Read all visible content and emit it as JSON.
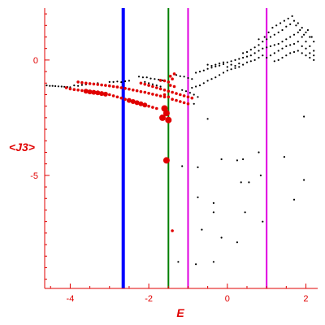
{
  "colors": {
    "axis": "#e00000",
    "tick_text": "#e00000",
    "black_points": "#000000",
    "red_points": "#e00000",
    "line_blue": "#0000ff",
    "line_green": "#008000",
    "line_magenta": "#e000e0"
  },
  "chart_data": {
    "type": "scatter",
    "title": "",
    "xlabel": "E",
    "ylabel": "<J3>",
    "xlim": [
      -4.65,
      2.3
    ],
    "ylim": [
      -9.9,
      2.25
    ],
    "xticks": [
      -4,
      -2,
      0,
      2
    ],
    "xtick_labels": [
      "-4",
      "-2",
      "0",
      "2"
    ],
    "yticks": [
      0,
      -5
    ],
    "ytick_labels": [
      "0",
      "-5"
    ],
    "grid": false,
    "legend": "none",
    "vlines": [
      {
        "x": -2.65,
        "color": "blue",
        "width": "thick"
      },
      {
        "x": -1.5,
        "color": "green",
        "width": "thin"
      },
      {
        "x": -1.0,
        "color": "magenta",
        "width": "thin"
      },
      {
        "x": 1.0,
        "color": "magenta",
        "width": "thin"
      }
    ],
    "series": [
      {
        "color": "black",
        "points": [
          [
            -4.6,
            -1.1
          ],
          [
            -4.52,
            -1.12
          ],
          [
            -4.45,
            -1.12
          ],
          [
            -4.38,
            -1.13
          ],
          [
            -4.3,
            -1.14
          ],
          [
            -4.22,
            -1.15
          ],
          [
            -4.15,
            -1.16
          ],
          [
            -4.07,
            -1.17
          ],
          [
            -4.0,
            -1.18
          ],
          [
            -3.9,
            -1.1
          ],
          [
            -3.8,
            -1.12
          ],
          [
            -3.7,
            -1.08
          ],
          [
            -3.6,
            -1.06
          ],
          [
            -3.5,
            -1.04
          ],
          [
            -3.4,
            -1.02
          ],
          [
            -3.3,
            -1.0
          ],
          [
            -3.0,
            -0.95
          ],
          [
            -2.9,
            -0.95
          ],
          [
            -2.8,
            -0.93
          ],
          [
            -2.7,
            -0.96
          ],
          [
            -2.6,
            -0.92
          ],
          [
            -2.5,
            -0.9
          ],
          [
            -2.25,
            -0.72
          ],
          [
            -2.15,
            -0.75
          ],
          [
            -2.05,
            -0.75
          ],
          [
            -1.95,
            -0.8
          ],
          [
            -1.85,
            -0.82
          ],
          [
            -1.75,
            -0.85
          ],
          [
            -1.65,
            -0.88
          ],
          [
            -2.1,
            -0.95
          ],
          [
            -2.0,
            -1.0
          ],
          [
            -1.9,
            -1.05
          ],
          [
            -1.8,
            -1.1
          ],
          [
            -1.7,
            -1.15
          ],
          [
            -1.3,
            -0.65
          ],
          [
            -1.2,
            -0.7
          ],
          [
            -1.1,
            -0.72
          ],
          [
            -1.0,
            -0.78
          ],
          [
            -0.9,
            -0.82
          ],
          [
            -1.15,
            -1.3
          ],
          [
            -1.05,
            -1.35
          ],
          [
            -0.95,
            -1.42
          ],
          [
            -0.85,
            -1.5
          ],
          [
            -0.75,
            -1.6
          ],
          [
            -0.85,
            -1.9
          ],
          [
            -0.8,
            -0.55
          ],
          [
            -0.7,
            -0.5
          ],
          [
            -0.6,
            -0.45
          ],
          [
            -0.5,
            -0.38
          ],
          [
            -0.4,
            -0.33
          ],
          [
            -0.3,
            -0.28
          ],
          [
            -0.2,
            -0.24
          ],
          [
            -0.1,
            -0.18
          ],
          [
            0.0,
            -0.1
          ],
          [
            0.1,
            -0.05
          ],
          [
            0.2,
            0.0
          ],
          [
            0.3,
            0.05
          ],
          [
            0.4,
            0.1
          ],
          [
            0.5,
            0.15
          ],
          [
            -0.9,
            -1.2
          ],
          [
            -0.8,
            -1.15
          ],
          [
            -0.7,
            -1.1
          ],
          [
            -0.6,
            -1.0
          ],
          [
            -0.5,
            -0.9
          ],
          [
            -0.4,
            -0.82
          ],
          [
            -0.3,
            -0.75
          ],
          [
            -0.2,
            -0.65
          ],
          [
            -0.1,
            -0.55
          ],
          [
            0.0,
            -0.45
          ],
          [
            0.1,
            -0.4
          ],
          [
            0.2,
            -0.35
          ],
          [
            0.3,
            -0.3
          ],
          [
            -0.5,
            -0.2
          ],
          [
            -0.4,
            -0.25
          ],
          [
            -0.3,
            -0.2
          ],
          [
            -0.2,
            -0.15
          ],
          [
            -0.1,
            -0.1
          ],
          [
            0.0,
            -0.3
          ],
          [
            0.1,
            -0.2
          ],
          [
            0.2,
            -0.25
          ],
          [
            0.3,
            -0.15
          ],
          [
            0.4,
            -0.2
          ],
          [
            0.5,
            -0.1
          ],
          [
            0.6,
            -0.05
          ],
          [
            0.7,
            0.0
          ],
          [
            0.8,
            0.1
          ],
          [
            0.9,
            0.2
          ],
          [
            0.4,
            0.3
          ],
          [
            0.5,
            0.35
          ],
          [
            0.6,
            0.45
          ],
          [
            0.7,
            0.55
          ],
          [
            0.8,
            0.65
          ],
          [
            0.9,
            0.8
          ],
          [
            1.0,
            0.9
          ],
          [
            1.1,
            1.0
          ],
          [
            1.2,
            1.1
          ],
          [
            1.3,
            1.2
          ],
          [
            1.4,
            1.3
          ],
          [
            1.5,
            1.45
          ],
          [
            1.6,
            1.55
          ],
          [
            1.7,
            1.7
          ],
          [
            1.8,
            1.6
          ],
          [
            1.9,
            1.4
          ],
          [
            2.0,
            1.2
          ],
          [
            2.1,
            1.0
          ],
          [
            2.2,
            0.8
          ],
          [
            0.6,
            0.2
          ],
          [
            0.7,
            0.3
          ],
          [
            0.8,
            0.4
          ],
          [
            0.9,
            0.5
          ],
          [
            1.0,
            0.55
          ],
          [
            1.1,
            0.6
          ],
          [
            1.2,
            0.65
          ],
          [
            1.3,
            0.7
          ],
          [
            1.4,
            0.8
          ],
          [
            1.5,
            0.9
          ],
          [
            1.6,
            1.0
          ],
          [
            1.7,
            1.1
          ],
          [
            1.8,
            1.2
          ],
          [
            1.9,
            1.0
          ],
          [
            2.0,
            0.8
          ],
          [
            2.1,
            0.6
          ],
          [
            2.2,
            0.4
          ],
          [
            1.0,
            0.1
          ],
          [
            1.1,
            0.2
          ],
          [
            1.2,
            0.3
          ],
          [
            1.3,
            0.4
          ],
          [
            1.4,
            0.5
          ],
          [
            1.5,
            0.6
          ],
          [
            1.6,
            0.65
          ],
          [
            1.7,
            0.7
          ],
          [
            1.8,
            0.8
          ],
          [
            1.9,
            0.6
          ],
          [
            2.0,
            0.5
          ],
          [
            2.1,
            0.3
          ],
          [
            2.2,
            0.2
          ],
          [
            1.2,
            -0.05
          ],
          [
            1.3,
            0.0
          ],
          [
            1.4,
            0.1
          ],
          [
            1.5,
            0.2
          ],
          [
            1.6,
            0.3
          ],
          [
            1.7,
            0.35
          ],
          [
            1.8,
            0.4
          ],
          [
            1.9,
            0.3
          ],
          [
            2.0,
            0.2
          ],
          [
            2.1,
            0.1
          ],
          [
            2.2,
            0.0
          ],
          [
            0.8,
            0.9
          ],
          [
            0.95,
            1.0
          ],
          [
            1.05,
            1.2
          ],
          [
            1.15,
            1.4
          ],
          [
            1.25,
            1.5
          ],
          [
            1.35,
            1.6
          ],
          [
            1.45,
            1.7
          ],
          [
            1.55,
            1.8
          ],
          [
            1.65,
            1.9
          ],
          [
            1.75,
            1.5
          ],
          [
            1.85,
            1.3
          ],
          [
            1.95,
            1.1
          ],
          [
            2.05,
            1.3
          ],
          [
            2.15,
            1.0
          ],
          [
            -0.5,
            -2.55
          ],
          [
            -1.15,
            -4.6
          ],
          [
            -0.75,
            -4.65
          ],
          [
            -0.15,
            -4.3
          ],
          [
            0.25,
            -4.35
          ],
          [
            0.4,
            -4.3
          ],
          [
            0.8,
            -4.0
          ],
          [
            1.95,
            -2.45
          ],
          [
            1.95,
            -5.2
          ],
          [
            1.45,
            -4.2
          ],
          [
            0.85,
            -5.0
          ],
          [
            0.55,
            -5.3
          ],
          [
            0.35,
            -5.3
          ],
          [
            -0.75,
            -5.95
          ],
          [
            -0.35,
            -6.2
          ],
          [
            -0.35,
            -6.6
          ],
          [
            0.45,
            -6.6
          ],
          [
            1.7,
            -6.05
          ],
          [
            0.9,
            -7.0
          ],
          [
            -0.65,
            -7.35
          ],
          [
            -0.15,
            -7.7
          ],
          [
            0.25,
            -7.9
          ],
          [
            -1.25,
            -8.75
          ],
          [
            -0.8,
            -8.85
          ],
          [
            -0.35,
            -8.75
          ]
        ]
      },
      {
        "color": "red",
        "points": [
          [
            -4.1,
            -1.2
          ],
          [
            -4.0,
            -1.25
          ],
          [
            -3.9,
            -1.28
          ],
          [
            -3.8,
            -1.3
          ],
          [
            -3.7,
            -1.32
          ],
          [
            -3.6,
            -1.35
          ],
          [
            -3.5,
            -1.38
          ],
          [
            -3.4,
            -1.4
          ],
          [
            -3.3,
            -1.42
          ],
          [
            -3.2,
            -1.45
          ],
          [
            -3.1,
            -1.48
          ],
          [
            -3.0,
            -1.5
          ],
          [
            -2.9,
            -1.55
          ],
          [
            -2.8,
            -1.6
          ],
          [
            -2.7,
            -1.65
          ],
          [
            -2.6,
            -1.7
          ],
          [
            -2.5,
            -1.75
          ],
          [
            -2.4,
            -1.8
          ],
          [
            -2.3,
            -1.85
          ],
          [
            -2.2,
            -1.9
          ],
          [
            -2.1,
            -1.95
          ],
          [
            -2.0,
            -2.0
          ],
          [
            -1.9,
            -2.05
          ],
          [
            -1.8,
            -2.1
          ],
          [
            -3.8,
            -0.95
          ],
          [
            -3.7,
            -0.98
          ],
          [
            -3.6,
            -1.0
          ],
          [
            -3.5,
            -1.02
          ],
          [
            -3.4,
            -1.04
          ],
          [
            -3.3,
            -1.06
          ],
          [
            -3.2,
            -1.08
          ],
          [
            -3.1,
            -1.1
          ],
          [
            -3.0,
            -1.12
          ],
          [
            -2.9,
            -1.15
          ],
          [
            -2.8,
            -1.17
          ],
          [
            -2.7,
            -1.2
          ],
          [
            -2.6,
            -1.23
          ],
          [
            -2.5,
            -1.26
          ],
          [
            -2.4,
            -1.3
          ],
          [
            -2.3,
            -1.33
          ],
          [
            -2.2,
            -1.37
          ],
          [
            -2.1,
            -1.4
          ],
          [
            -2.0,
            -1.44
          ],
          [
            -1.9,
            -1.48
          ],
          [
            -1.8,
            -1.52
          ],
          [
            -1.7,
            -1.56
          ],
          [
            -1.6,
            -1.6
          ],
          [
            -2.2,
            -1.0
          ],
          [
            -2.1,
            -1.05
          ],
          [
            -2.0,
            -1.1
          ],
          [
            -1.9,
            -1.15
          ],
          [
            -1.8,
            -1.2
          ],
          [
            -1.7,
            -1.25
          ],
          [
            -1.6,
            -1.3
          ],
          [
            -1.5,
            -1.35
          ],
          [
            -1.4,
            -1.4
          ],
          [
            -1.3,
            -1.45
          ],
          [
            -1.2,
            -1.5
          ],
          [
            -1.1,
            -1.55
          ],
          [
            -1.0,
            -1.6
          ],
          [
            -0.9,
            -1.65
          ],
          [
            -1.6,
            -1.5
          ],
          [
            -1.5,
            -1.6
          ],
          [
            -1.4,
            -1.7
          ],
          [
            -1.3,
            -1.75
          ],
          [
            -1.2,
            -1.8
          ],
          [
            -1.1,
            -1.85
          ],
          [
            -1.0,
            -1.9
          ],
          [
            -1.7,
            -0.88
          ],
          [
            -1.6,
            -0.9
          ],
          [
            -1.5,
            -0.95
          ],
          [
            -1.4,
            -0.82
          ],
          [
            -1.45,
            -0.7
          ],
          [
            -1.35,
            -0.6
          ],
          [
            -1.45,
            -1.1
          ],
          [
            -1.35,
            -1.15
          ],
          [
            -1.6,
            -2.1
          ],
          [
            -1.55,
            -2.3
          ],
          [
            -1.65,
            -2.5
          ],
          [
            -1.5,
            -2.6
          ],
          [
            -1.55,
            -4.35
          ],
          [
            -1.4,
            -7.4
          ]
        ]
      }
    ]
  }
}
